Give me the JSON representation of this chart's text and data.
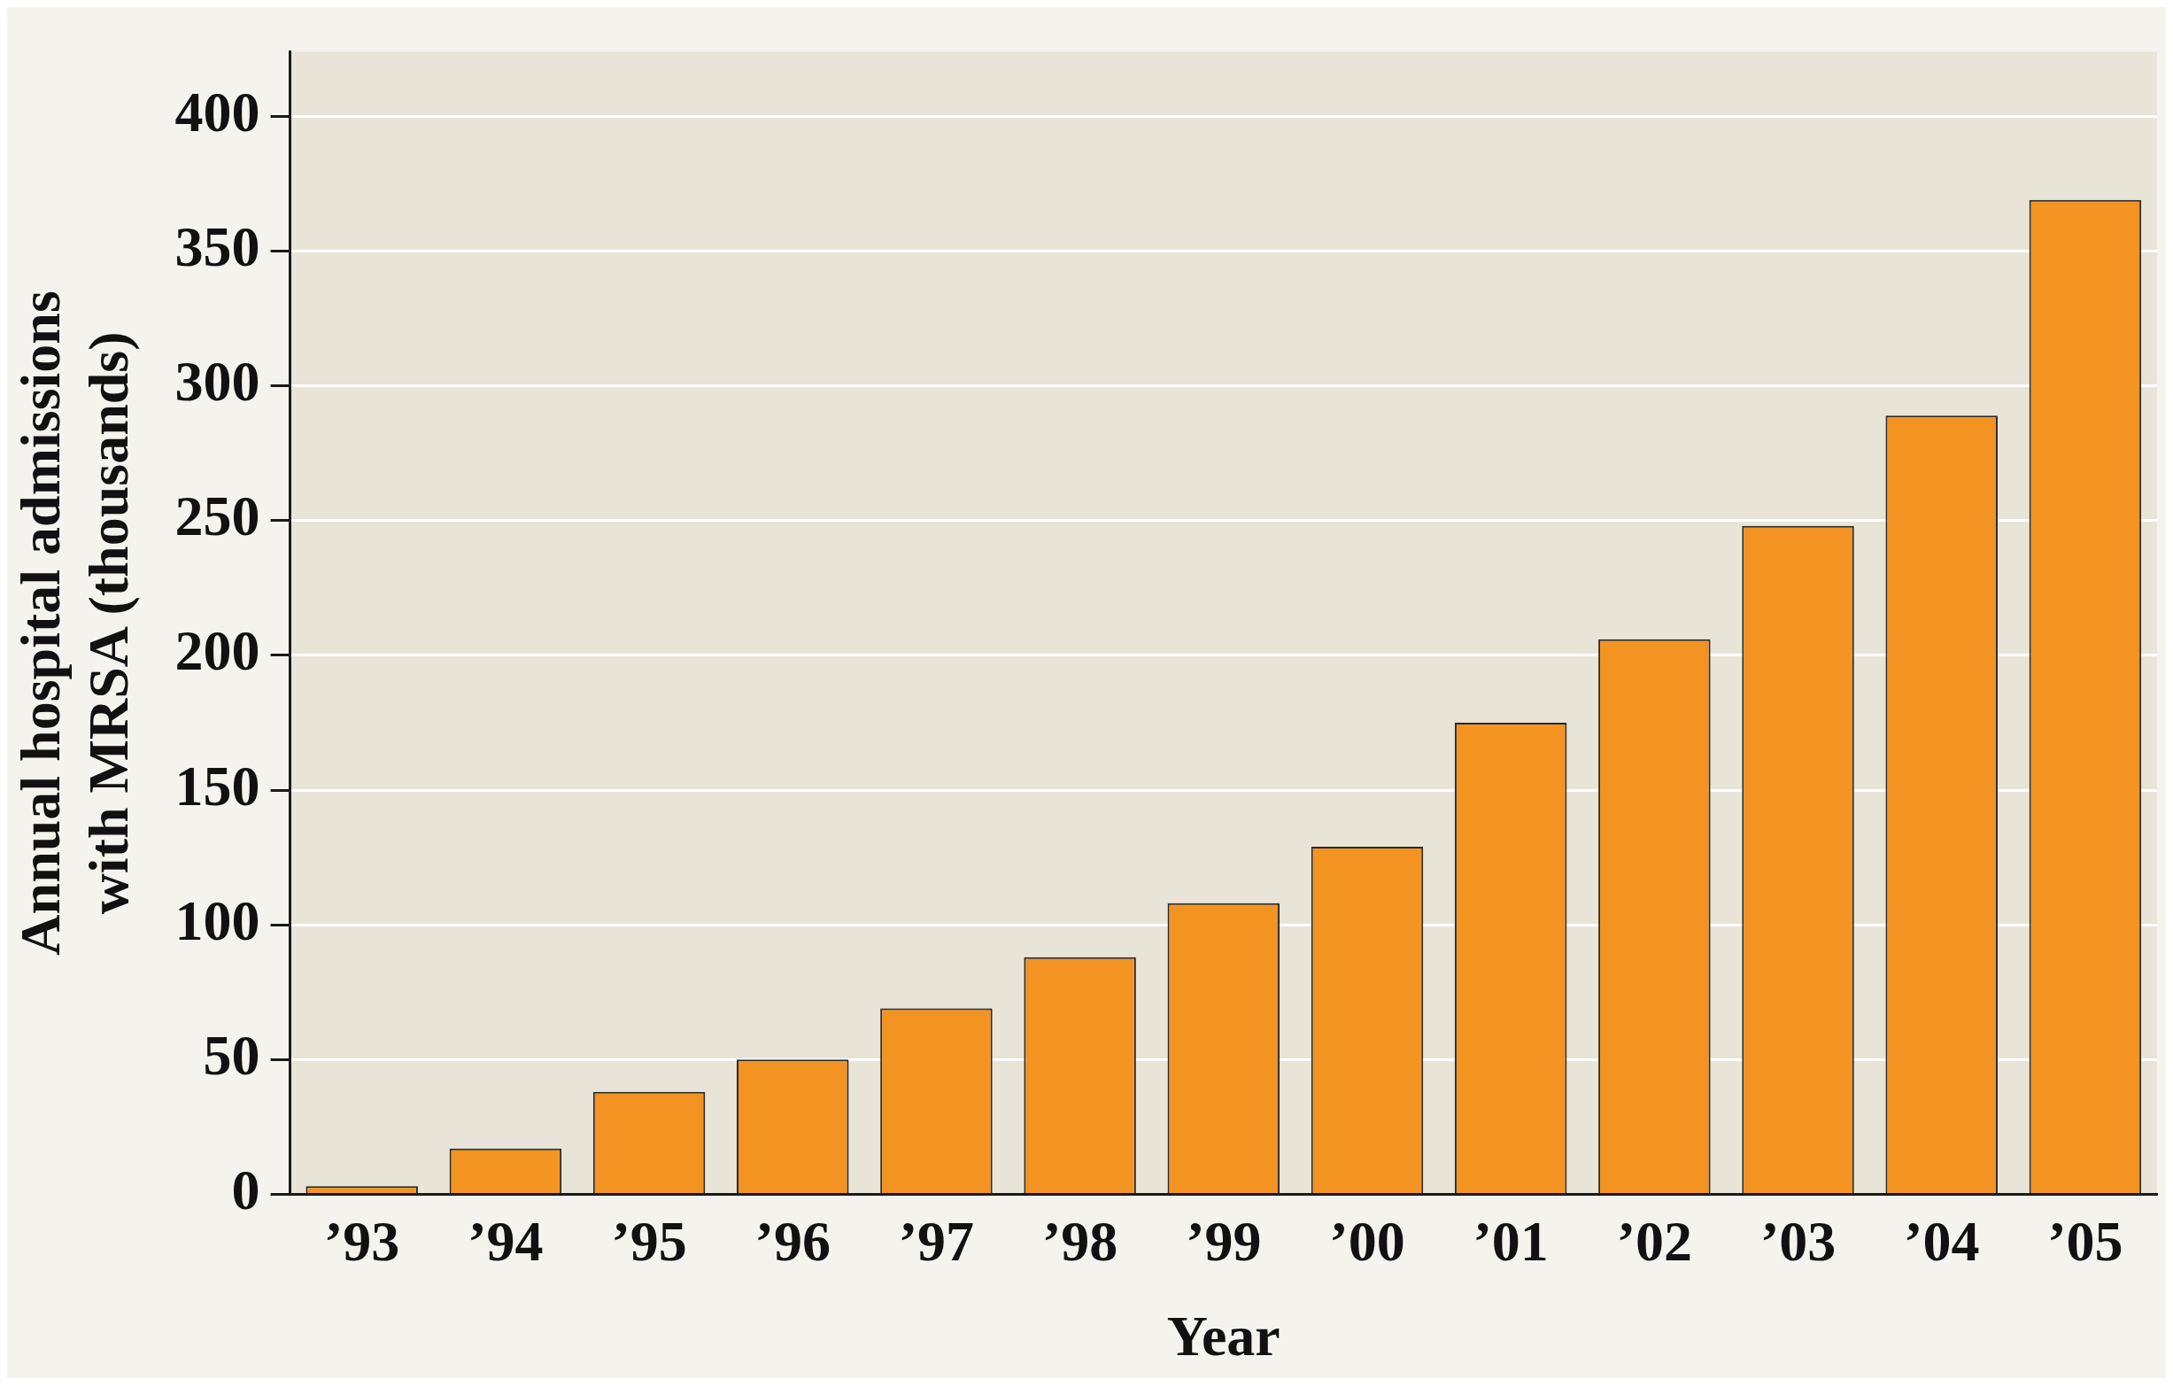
{
  "chart_data": {
    "type": "bar",
    "xlabel": "Year",
    "ylabel": "Annual hospital admissions\nwith MRSA (thousands)",
    "categories": [
      "’93",
      "’94",
      "’95",
      "’96",
      "’97",
      "’98",
      "’99",
      "’00",
      "’01",
      "’02",
      "’03",
      "’04",
      "’05"
    ],
    "values": [
      3,
      17,
      38,
      50,
      69,
      88,
      108,
      129,
      175,
      206,
      248,
      289,
      369
    ],
    "color": "#f39322",
    "ylim": [
      0,
      424
    ],
    "yticks": [
      0,
      50,
      100,
      150,
      200,
      250,
      300,
      350,
      400
    ],
    "grid": "y",
    "legend": false
  }
}
